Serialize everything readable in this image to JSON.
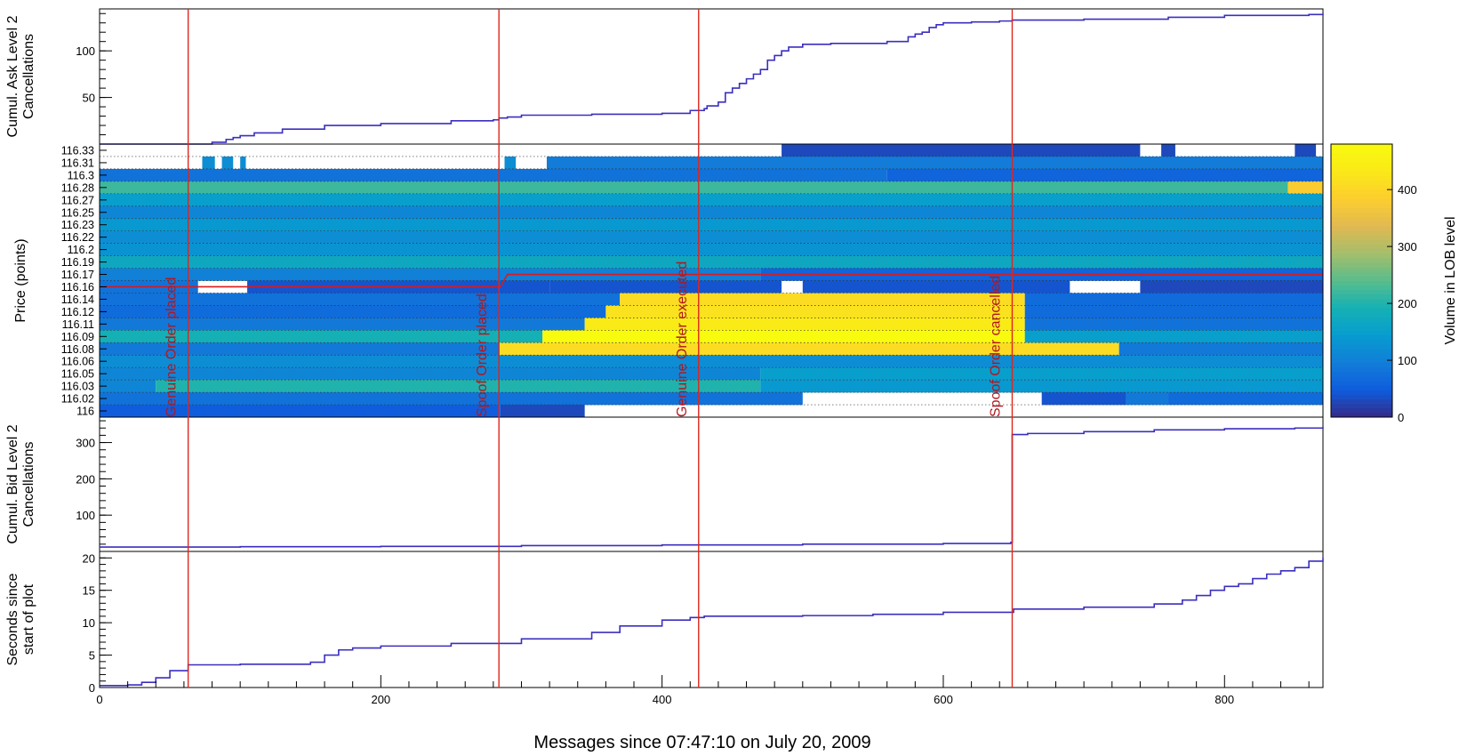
{
  "chart_data": {
    "type": "line",
    "xlabel": "Messages since 07:47:10 on July 20, 2009",
    "xlim": [
      0,
      870
    ],
    "xticks": [
      0,
      200,
      400,
      600,
      800
    ],
    "events": [
      {
        "label": "Genuine Order placed",
        "x": 63
      },
      {
        "label": "Spoof Order placed",
        "x": 284
      },
      {
        "label": "Genuine Order executed",
        "x": 426
      },
      {
        "label": "Spoof Order cancelled",
        "x": 649
      }
    ],
    "panels": [
      {
        "name": "ask",
        "type": "line",
        "ylabel": [
          "Cumul. Ask Level 2",
          "Cancellations"
        ],
        "ylim": [
          0,
          145
        ],
        "yticks": [
          50,
          100
        ],
        "x": [
          0,
          70,
          80,
          90,
          95,
          100,
          110,
          130,
          160,
          200,
          250,
          280,
          284,
          290,
          300,
          350,
          400,
          420,
          430,
          432,
          440,
          445,
          450,
          455,
          460,
          465,
          470,
          475,
          480,
          485,
          490,
          500,
          520,
          560,
          575,
          580,
          585,
          590,
          595,
          600,
          620,
          640,
          649,
          700,
          760,
          800,
          860,
          870
        ],
        "y": [
          0,
          0,
          2,
          5,
          7,
          9,
          12,
          16,
          20,
          22,
          25,
          26,
          28,
          29,
          31,
          32,
          33,
          36,
          38,
          41,
          45,
          55,
          60,
          65,
          70,
          75,
          80,
          90,
          95,
          100,
          104,
          107,
          108,
          110,
          115,
          118,
          120,
          125,
          128,
          130,
          131,
          132,
          133,
          134,
          136,
          138,
          139,
          140
        ]
      },
      {
        "name": "heatmap",
        "type": "heatmap",
        "ylabel": "Price (points)",
        "colorbar_label": "Volume in LOB level",
        "colorbar_range": [
          0,
          480
        ],
        "colorbar_ticks": [
          0,
          100,
          200,
          300,
          400
        ],
        "price_levels": [
          "116",
          "116.02",
          "116.03",
          "116.05",
          "116.06",
          "116.08",
          "116.09",
          "116.11",
          "116.12",
          "116.14",
          "116.16",
          "116.17",
          "116.19",
          "116.2",
          "116.22",
          "116.23",
          "116.25",
          "116.27",
          "116.28",
          "116.3",
          "116.31",
          "116.33"
        ],
        "price_ticks_shown": [
          "116",
          "116.02",
          "116.03",
          "116.05",
          "116.06",
          "116.08",
          "116.09",
          "116.11",
          "116.12",
          "116.14",
          "116.16",
          "116.17",
          "116.19",
          "116.2",
          "116.22",
          "116.23",
          "116.25",
          "116.27",
          "116.28",
          "116.3",
          "116.31",
          "116.33"
        ],
        "segments": [
          {
            "level": "116.33",
            "x0": 0,
            "x1": 485,
            "value": null
          },
          {
            "level": "116.33",
            "x0": 485,
            "x1": 740,
            "value": 30
          },
          {
            "level": "116.33",
            "x0": 740,
            "x1": 755,
            "value": null
          },
          {
            "level": "116.33",
            "x0": 755,
            "x1": 765,
            "value": 30
          },
          {
            "level": "116.33",
            "x0": 765,
            "x1": 850,
            "value": null
          },
          {
            "level": "116.33",
            "x0": 850,
            "x1": 865,
            "value": 30
          },
          {
            "level": "116.33",
            "x0": 865,
            "x1": 870,
            "value": null
          },
          {
            "level": "116.31",
            "x0": 0,
            "x1": 73,
            "value": null
          },
          {
            "level": "116.31",
            "x0": 73,
            "x1": 82,
            "value": 120
          },
          {
            "level": "116.31",
            "x0": 82,
            "x1": 87,
            "value": null
          },
          {
            "level": "116.31",
            "x0": 87,
            "x1": 95,
            "value": 120
          },
          {
            "level": "116.31",
            "x0": 95,
            "x1": 100,
            "value": null
          },
          {
            "level": "116.31",
            "x0": 100,
            "x1": 104,
            "value": 120
          },
          {
            "level": "116.31",
            "x0": 104,
            "x1": 288,
            "value": null
          },
          {
            "level": "116.31",
            "x0": 288,
            "x1": 296,
            "value": 120
          },
          {
            "level": "116.31",
            "x0": 296,
            "x1": 318,
            "value": null
          },
          {
            "level": "116.31",
            "x0": 318,
            "x1": 870,
            "value": 95
          },
          {
            "level": "116.3",
            "x0": 0,
            "x1": 560,
            "value": 80
          },
          {
            "level": "116.3",
            "x0": 560,
            "x1": 870,
            "value": 60
          },
          {
            "level": "116.28",
            "x0": 0,
            "x1": 845,
            "value": 220
          },
          {
            "level": "116.28",
            "x0": 845,
            "x1": 870,
            "value": 380
          },
          {
            "level": "116.27",
            "x0": 0,
            "x1": 870,
            "value": 150
          },
          {
            "level": "116.25",
            "x0": 0,
            "x1": 870,
            "value": 110
          },
          {
            "level": "116.23",
            "x0": 0,
            "x1": 870,
            "value": 140
          },
          {
            "level": "116.22",
            "x0": 0,
            "x1": 870,
            "value": 120
          },
          {
            "level": "116.2",
            "x0": 0,
            "x1": 870,
            "value": 130
          },
          {
            "level": "116.19",
            "x0": 0,
            "x1": 870,
            "value": 170
          },
          {
            "level": "116.17",
            "x0": 0,
            "x1": 470,
            "value": 100
          },
          {
            "level": "116.17",
            "x0": 470,
            "x1": 870,
            "value": 60
          },
          {
            "level": "116.16",
            "x0": 0,
            "x1": 70,
            "value": 80
          },
          {
            "level": "116.16",
            "x0": 70,
            "x1": 105,
            "value": null
          },
          {
            "level": "116.16",
            "x0": 105,
            "x1": 320,
            "value": 40
          },
          {
            "level": "116.16",
            "x0": 320,
            "x1": 485,
            "value": 40
          },
          {
            "level": "116.16",
            "x0": 485,
            "x1": 500,
            "value": null
          },
          {
            "level": "116.16",
            "x0": 500,
            "x1": 690,
            "value": 40
          },
          {
            "level": "116.16",
            "x0": 690,
            "x1": 740,
            "value": null
          },
          {
            "level": "116.16",
            "x0": 740,
            "x1": 870,
            "value": 30
          },
          {
            "level": "116.14",
            "x0": 0,
            "x1": 370,
            "value": 80
          },
          {
            "level": "116.14",
            "x0": 370,
            "x1": 658,
            "value": 410
          },
          {
            "level": "116.14",
            "x0": 658,
            "x1": 870,
            "value": 70
          },
          {
            "level": "116.12",
            "x0": 0,
            "x1": 360,
            "value": 70
          },
          {
            "level": "116.12",
            "x0": 360,
            "x1": 658,
            "value": 420
          },
          {
            "level": "116.12",
            "x0": 658,
            "x1": 870,
            "value": 70
          },
          {
            "level": "116.11",
            "x0": 0,
            "x1": 345,
            "value": 90
          },
          {
            "level": "116.11",
            "x0": 345,
            "x1": 658,
            "value": 440
          },
          {
            "level": "116.11",
            "x0": 658,
            "x1": 870,
            "value": 80
          },
          {
            "level": "116.09",
            "x0": 0,
            "x1": 315,
            "value": 190
          },
          {
            "level": "116.09",
            "x0": 315,
            "x1": 658,
            "value": 480
          },
          {
            "level": "116.09",
            "x0": 658,
            "x1": 870,
            "value": 150
          },
          {
            "level": "116.08",
            "x0": 0,
            "x1": 284,
            "value": 90
          },
          {
            "level": "116.08",
            "x0": 284,
            "x1": 725,
            "value": 410
          },
          {
            "level": "116.08",
            "x0": 725,
            "x1": 870,
            "value": 90
          },
          {
            "level": "116.06",
            "x0": 0,
            "x1": 870,
            "value": 120
          },
          {
            "level": "116.05",
            "x0": 0,
            "x1": 470,
            "value": 110
          },
          {
            "level": "116.05",
            "x0": 470,
            "x1": 870,
            "value": 150
          },
          {
            "level": "116.03",
            "x0": 0,
            "x1": 40,
            "value": 110
          },
          {
            "level": "116.03",
            "x0": 40,
            "x1": 470,
            "value": 200
          },
          {
            "level": "116.03",
            "x0": 470,
            "x1": 870,
            "value": 140
          },
          {
            "level": "116.02",
            "x0": 0,
            "x1": 500,
            "value": 80
          },
          {
            "level": "116.02",
            "x0": 500,
            "x1": 670,
            "value": null
          },
          {
            "level": "116.02",
            "x0": 670,
            "x1": 730,
            "value": 40
          },
          {
            "level": "116.02",
            "x0": 730,
            "x1": 760,
            "value": 90
          },
          {
            "level": "116.02",
            "x0": 760,
            "x1": 870,
            "value": 70
          },
          {
            "level": "116",
            "x0": 0,
            "x1": 285,
            "value": 50
          },
          {
            "level": "116",
            "x0": 285,
            "x1": 345,
            "value": 30
          },
          {
            "level": "116",
            "x0": 345,
            "x1": 870,
            "value": null
          }
        ],
        "best_ask_line": [
          [
            0,
            "116.16"
          ],
          [
            285,
            "116.16"
          ],
          [
            290,
            "116.17"
          ],
          [
            870,
            "116.17"
          ]
        ]
      },
      {
        "name": "bid",
        "type": "line",
        "ylabel": [
          "Cumul. Bid Level 2",
          "Cancellations"
        ],
        "ylim": [
          0,
          370
        ],
        "yticks": [
          100,
          200,
          300
        ],
        "x": [
          0,
          100,
          200,
          300,
          400,
          500,
          600,
          648,
          649,
          660,
          700,
          750,
          800,
          850,
          870
        ],
        "y": [
          12,
          13,
          14,
          16,
          18,
          20,
          22,
          25,
          322,
          325,
          330,
          335,
          338,
          340,
          343
        ]
      },
      {
        "name": "time",
        "type": "line",
        "ylabel": [
          "Seconds since",
          "start of plot"
        ],
        "ylim": [
          0,
          21
        ],
        "yticks": [
          0,
          5,
          10,
          15,
          20
        ],
        "x": [
          0,
          10,
          20,
          30,
          40,
          50,
          63,
          80,
          100,
          150,
          160,
          170,
          180,
          200,
          250,
          300,
          350,
          370,
          400,
          420,
          430,
          500,
          550,
          600,
          650,
          700,
          750,
          770,
          780,
          790,
          800,
          810,
          820,
          830,
          840,
          850,
          860,
          870
        ],
        "y": [
          0.3,
          0.3,
          0.4,
          0.8,
          1.5,
          2.6,
          3.5,
          3.5,
          3.6,
          3.9,
          5.0,
          5.8,
          6.1,
          6.4,
          6.8,
          7.5,
          8.5,
          9.5,
          10.4,
          10.8,
          11.0,
          11.1,
          11.3,
          11.6,
          12.1,
          12.4,
          12.9,
          13.5,
          14.2,
          15.0,
          15.6,
          16.0,
          16.8,
          17.5,
          18.0,
          18.5,
          19.5,
          20.0
        ]
      }
    ]
  }
}
